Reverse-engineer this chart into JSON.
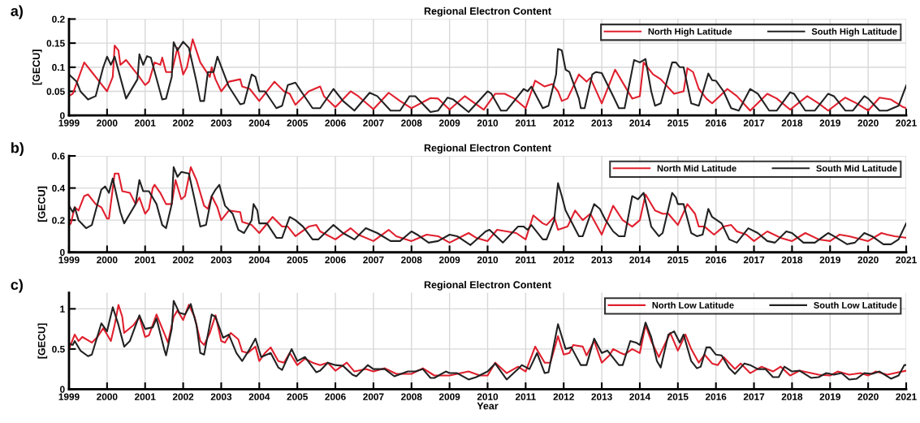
{
  "chart_data": [
    {
      "type": "line",
      "title": "Regional Electron Content",
      "ylabel": "[GECU]",
      "annotations": [
        "a)"
      ],
      "xlim": [
        1999,
        2021
      ],
      "xticks": [
        1999,
        2000,
        2001,
        2002,
        2003,
        2004,
        2005,
        2006,
        2007,
        2008,
        2009,
        2010,
        2011,
        2012,
        2013,
        2014,
        2015,
        2016,
        2017,
        2018,
        2019,
        2020,
        2021
      ],
      "ylim": [
        0,
        0.2
      ],
      "yticks": [
        0,
        0.05,
        0.1,
        0.15,
        0.2
      ],
      "grid": true,
      "legend": "top right",
      "series": [
        {
          "name": "North High Latitude",
          "color": "#e0202e",
          "x": [
            1999.0,
            1999.1,
            1999.4,
            1999.6,
            1999.8,
            2000.0,
            2000.15,
            2000.2,
            2000.3,
            2000.35,
            2000.5,
            2000.7,
            2000.8,
            2001.0,
            2001.1,
            2001.25,
            2001.4,
            2001.45,
            2001.55,
            2001.7,
            2001.85,
            2002.0,
            2002.1,
            2002.25,
            2002.45,
            2002.7,
            2002.75,
            2002.85,
            2003.0,
            2003.2,
            2003.5,
            2003.55,
            2003.75,
            2004.0,
            2004.15,
            2004.4,
            2004.65,
            2004.8,
            2004.95,
            2005.3,
            2005.6,
            2005.7,
            2006.0,
            2006.4,
            2006.6,
            2007.0,
            2007.4,
            2007.7,
            2008.0,
            2008.5,
            2008.7,
            2009.0,
            2009.4,
            2009.9,
            2010.2,
            2010.45,
            2010.7,
            2011.0,
            2011.25,
            2011.5,
            2011.7,
            2011.85,
            2011.95,
            2012.1,
            2012.4,
            2012.6,
            2012.7,
            2013.0,
            2013.35,
            2013.8,
            2014.0,
            2014.1,
            2014.35,
            2014.55,
            2014.9,
            2015.15,
            2015.25,
            2015.4,
            2015.55,
            2015.75,
            2015.9,
            2016.3,
            2016.55,
            2016.9,
            2017.35,
            2017.6,
            2017.95,
            2018.4,
            2018.7,
            2018.95,
            2019.4,
            2019.7,
            2020.0,
            2020.3,
            2020.6,
            2020.9,
            2021.0
          ],
          "values": [
            0.04,
            0.045,
            0.11,
            0.09,
            0.07,
            0.05,
            0.08,
            0.145,
            0.135,
            0.105,
            0.115,
            0.095,
            0.085,
            0.063,
            0.07,
            0.11,
            0.105,
            0.12,
            0.09,
            0.09,
            0.14,
            0.085,
            0.1,
            0.158,
            0.11,
            0.08,
            0.1,
            0.075,
            0.05,
            0.07,
            0.075,
            0.06,
            0.055,
            0.03,
            0.045,
            0.07,
            0.05,
            0.045,
            0.022,
            0.05,
            0.06,
            0.04,
            0.017,
            0.05,
            0.04,
            0.013,
            0.047,
            0.03,
            0.015,
            0.036,
            0.035,
            0.012,
            0.04,
            0.012,
            0.045,
            0.045,
            0.035,
            0.015,
            0.072,
            0.06,
            0.065,
            0.05,
            0.03,
            0.035,
            0.085,
            0.07,
            0.078,
            0.025,
            0.095,
            0.035,
            0.04,
            0.11,
            0.085,
            0.075,
            0.045,
            0.05,
            0.098,
            0.09,
            0.055,
            0.035,
            0.025,
            0.055,
            0.04,
            0.01,
            0.045,
            0.035,
            0.012,
            0.04,
            0.025,
            0.01,
            0.037,
            0.025,
            0.01,
            0.037,
            0.033,
            0.018,
            0.015
          ]
        },
        {
          "name": "South High Latitude",
          "color": "#222222",
          "x": [
            1999.0,
            1999.2,
            1999.3,
            1999.5,
            1999.7,
            1999.9,
            2000.0,
            2000.1,
            2000.2,
            2000.5,
            2000.8,
            2000.85,
            2000.95,
            2001.05,
            2001.15,
            2001.45,
            2001.55,
            2001.7,
            2001.75,
            2001.85,
            2002.0,
            2002.15,
            2002.35,
            2002.45,
            2002.55,
            2002.65,
            2002.8,
            2002.9,
            2003.2,
            2003.5,
            2003.6,
            2003.8,
            2003.9,
            2004.0,
            2004.15,
            2004.45,
            2004.6,
            2004.75,
            2004.95,
            2005.1,
            2005.4,
            2005.6,
            2005.95,
            2006.2,
            2006.5,
            2006.9,
            2007.1,
            2007.45,
            2007.7,
            2007.95,
            2008.1,
            2008.5,
            2008.7,
            2008.95,
            2009.1,
            2009.5,
            2010.0,
            2010.1,
            2010.35,
            2010.5,
            2010.8,
            2010.95,
            2011.05,
            2011.15,
            2011.45,
            2011.6,
            2011.8,
            2011.85,
            2011.95,
            2012.05,
            2012.15,
            2012.4,
            2012.45,
            2012.55,
            2012.75,
            2012.85,
            2013.0,
            2013.3,
            2013.45,
            2013.6,
            2013.85,
            2014.0,
            2014.15,
            2014.3,
            2014.4,
            2014.55,
            2014.85,
            2014.95,
            2015.05,
            2015.15,
            2015.35,
            2015.55,
            2015.8,
            2015.9,
            2016.0,
            2016.2,
            2016.4,
            2016.6,
            2016.9,
            2017.1,
            2017.4,
            2017.6,
            2017.95,
            2018.05,
            2018.35,
            2018.6,
            2018.95,
            2019.1,
            2019.4,
            2019.6,
            2019.9,
            2020.0,
            2020.3,
            2020.5,
            2020.8,
            2021.0
          ],
          "values": [
            0.085,
            0.07,
            0.05,
            0.033,
            0.04,
            0.1,
            0.122,
            0.105,
            0.122,
            0.035,
            0.075,
            0.127,
            0.105,
            0.123,
            0.12,
            0.033,
            0.035,
            0.08,
            0.152,
            0.135,
            0.153,
            0.14,
            0.07,
            0.03,
            0.03,
            0.09,
            0.09,
            0.122,
            0.06,
            0.023,
            0.025,
            0.085,
            0.08,
            0.05,
            0.05,
            0.015,
            0.02,
            0.063,
            0.068,
            0.05,
            0.015,
            0.015,
            0.055,
            0.03,
            0.01,
            0.047,
            0.04,
            0.01,
            0.01,
            0.04,
            0.04,
            0.007,
            0.01,
            0.037,
            0.033,
            0.007,
            0.05,
            0.045,
            0.01,
            0.01,
            0.04,
            0.055,
            0.05,
            0.06,
            0.015,
            0.02,
            0.085,
            0.138,
            0.135,
            0.095,
            0.09,
            0.035,
            0.015,
            0.015,
            0.085,
            0.09,
            0.088,
            0.04,
            0.015,
            0.015,
            0.115,
            0.11,
            0.117,
            0.05,
            0.02,
            0.025,
            0.11,
            0.11,
            0.1,
            0.1,
            0.025,
            0.02,
            0.087,
            0.073,
            0.072,
            0.05,
            0.015,
            0.01,
            0.055,
            0.045,
            0.01,
            0.01,
            0.048,
            0.045,
            0.01,
            0.01,
            0.045,
            0.04,
            0.01,
            0.01,
            0.04,
            0.035,
            0.01,
            0.01,
            0.02,
            0.062
          ]
        }
      ]
    },
    {
      "type": "line",
      "title": "Regional Electron Content",
      "ylabel": "[GECU]",
      "annotations": [
        "b)"
      ],
      "xlim": [
        1999,
        2021
      ],
      "xticks": [
        1999,
        2000,
        2001,
        2002,
        2003,
        2004,
        2005,
        2006,
        2007,
        2008,
        2009,
        2010,
        2011,
        2012,
        2013,
        2014,
        2015,
        2016,
        2017,
        2018,
        2019,
        2020,
        2021
      ],
      "ylim": [
        0,
        0.6
      ],
      "yticks": [
        0,
        0.2,
        0.4,
        0.6
      ],
      "grid": true,
      "legend": "top right",
      "series": [
        {
          "name": "North Mid Latitude",
          "color": "#e0202e",
          "x": [
            1999.0,
            1999.05,
            1999.15,
            1999.25,
            1999.4,
            1999.5,
            1999.7,
            1999.85,
            2000.0,
            2000.05,
            2000.2,
            2000.3,
            2000.4,
            2000.6,
            2000.75,
            2000.85,
            2001.0,
            2001.1,
            2001.2,
            2001.25,
            2001.4,
            2001.55,
            2001.7,
            2001.8,
            2001.95,
            2002.05,
            2002.2,
            2002.35,
            2002.55,
            2002.65,
            2002.75,
            2002.9,
            2003.0,
            2003.2,
            2003.5,
            2003.55,
            2003.8,
            2004.0,
            2004.35,
            2004.6,
            2004.75,
            2004.95,
            2005.3,
            2005.5,
            2005.6,
            2006.0,
            2006.4,
            2006.6,
            2007.0,
            2007.4,
            2007.6,
            2008.0,
            2008.4,
            2008.7,
            2009.0,
            2009.5,
            2009.7,
            2010.0,
            2010.25,
            2010.5,
            2010.75,
            2011.0,
            2011.2,
            2011.45,
            2011.55,
            2011.75,
            2011.85,
            2012.1,
            2012.3,
            2012.5,
            2012.7,
            2013.0,
            2013.3,
            2013.55,
            2013.8,
            2014.0,
            2014.15,
            2014.4,
            2014.6,
            2014.75,
            2015.0,
            2015.25,
            2015.45,
            2015.55,
            2015.7,
            2015.95,
            2016.2,
            2016.4,
            2016.55,
            2016.8,
            2017.0,
            2017.35,
            2017.7,
            2018.0,
            2018.35,
            2018.7,
            2019.0,
            2019.25,
            2019.5,
            2020.0,
            2020.35,
            2020.5,
            2020.7,
            2021.0
          ],
          "values": [
            0.17,
            0.18,
            0.28,
            0.26,
            0.35,
            0.36,
            0.3,
            0.28,
            0.21,
            0.21,
            0.49,
            0.49,
            0.38,
            0.37,
            0.3,
            0.34,
            0.24,
            0.27,
            0.4,
            0.42,
            0.37,
            0.3,
            0.3,
            0.45,
            0.33,
            0.35,
            0.53,
            0.45,
            0.29,
            0.27,
            0.35,
            0.28,
            0.2,
            0.26,
            0.25,
            0.19,
            0.17,
            0.12,
            0.22,
            0.16,
            0.16,
            0.1,
            0.16,
            0.17,
            0.13,
            0.08,
            0.15,
            0.11,
            0.07,
            0.14,
            0.1,
            0.07,
            0.11,
            0.1,
            0.06,
            0.12,
            0.09,
            0.07,
            0.14,
            0.13,
            0.12,
            0.08,
            0.23,
            0.18,
            0.17,
            0.22,
            0.14,
            0.16,
            0.26,
            0.2,
            0.24,
            0.11,
            0.29,
            0.2,
            0.16,
            0.2,
            0.36,
            0.26,
            0.24,
            0.24,
            0.17,
            0.3,
            0.24,
            0.16,
            0.16,
            0.11,
            0.16,
            0.17,
            0.13,
            0.11,
            0.07,
            0.13,
            0.09,
            0.07,
            0.12,
            0.08,
            0.07,
            0.11,
            0.1,
            0.07,
            0.12,
            0.11,
            0.1,
            0.09
          ]
        },
        {
          "name": "South Mid Latitude",
          "color": "#222222",
          "x": [
            1999.0,
            1999.1,
            1999.15,
            1999.25,
            1999.45,
            1999.6,
            1999.85,
            1999.95,
            2000.05,
            2000.15,
            2000.35,
            2000.45,
            2000.75,
            2000.85,
            2000.95,
            2001.1,
            2001.3,
            2001.45,
            2001.55,
            2001.7,
            2001.75,
            2001.85,
            2001.95,
            2002.15,
            2002.3,
            2002.45,
            2002.6,
            2002.75,
            2002.85,
            2002.95,
            2003.1,
            2003.3,
            2003.45,
            2003.6,
            2003.8,
            2003.85,
            2003.95,
            2004.0,
            2004.2,
            2004.45,
            2004.6,
            2004.8,
            2004.95,
            2005.15,
            2005.4,
            2005.55,
            2005.95,
            2006.2,
            2006.5,
            2006.8,
            2007.1,
            2007.45,
            2007.7,
            2008.0,
            2008.15,
            2008.45,
            2008.7,
            2009.0,
            2009.2,
            2009.55,
            2009.95,
            2010.05,
            2010.4,
            2010.8,
            2010.95,
            2011.05,
            2011.15,
            2011.45,
            2011.55,
            2011.75,
            2011.85,
            2011.95,
            2012.05,
            2012.4,
            2012.5,
            2012.8,
            2012.95,
            2013.1,
            2013.3,
            2013.45,
            2013.6,
            2013.8,
            2013.95,
            2014.1,
            2014.3,
            2014.5,
            2014.6,
            2014.85,
            2014.95,
            2015.0,
            2015.15,
            2015.35,
            2015.5,
            2015.65,
            2015.8,
            2015.9,
            2016.15,
            2016.35,
            2016.55,
            2016.85,
            2017.1,
            2017.35,
            2017.55,
            2017.85,
            2018.0,
            2018.3,
            2018.6,
            2018.95,
            2019.1,
            2019.45,
            2019.65,
            2019.9,
            2020.1,
            2020.4,
            2020.6,
            2020.8,
            2021.0
          ],
          "values": [
            0.29,
            0.25,
            0.28,
            0.2,
            0.15,
            0.17,
            0.39,
            0.41,
            0.37,
            0.46,
            0.25,
            0.18,
            0.3,
            0.45,
            0.38,
            0.38,
            0.3,
            0.17,
            0.15,
            0.3,
            0.53,
            0.47,
            0.5,
            0.49,
            0.33,
            0.16,
            0.17,
            0.35,
            0.39,
            0.42,
            0.29,
            0.24,
            0.14,
            0.12,
            0.2,
            0.3,
            0.26,
            0.18,
            0.18,
            0.09,
            0.09,
            0.22,
            0.2,
            0.16,
            0.08,
            0.08,
            0.17,
            0.12,
            0.08,
            0.15,
            0.12,
            0.07,
            0.07,
            0.13,
            0.11,
            0.06,
            0.07,
            0.11,
            0.1,
            0.045,
            0.13,
            0.14,
            0.06,
            0.16,
            0.16,
            0.14,
            0.17,
            0.08,
            0.08,
            0.2,
            0.43,
            0.35,
            0.26,
            0.1,
            0.1,
            0.3,
            0.27,
            0.2,
            0.13,
            0.1,
            0.1,
            0.35,
            0.33,
            0.37,
            0.16,
            0.1,
            0.12,
            0.37,
            0.34,
            0.3,
            0.3,
            0.12,
            0.1,
            0.11,
            0.27,
            0.22,
            0.18,
            0.08,
            0.06,
            0.15,
            0.12,
            0.07,
            0.06,
            0.13,
            0.12,
            0.06,
            0.06,
            0.12,
            0.1,
            0.05,
            0.06,
            0.12,
            0.1,
            0.05,
            0.05,
            0.08,
            0.18
          ]
        }
      ]
    },
    {
      "type": "line",
      "title": "Regional Electron Content",
      "xlabel": "Year",
      "ylabel": "[GECU]",
      "annotations": [
        "c)"
      ],
      "xlim": [
        1999,
        2021
      ],
      "xticks": [
        1999,
        2000,
        2001,
        2002,
        2003,
        2004,
        2005,
        2006,
        2007,
        2008,
        2009,
        2010,
        2011,
        2012,
        2013,
        2014,
        2015,
        2016,
        2017,
        2018,
        2019,
        2020,
        2021
      ],
      "ylim": [
        0,
        1.2
      ],
      "yticks": [
        0,
        0.5,
        1
      ],
      "grid": true,
      "legend": "top right",
      "series": [
        {
          "name": "North Low Latitude",
          "color": "#e0202e",
          "x": [
            1999.0,
            1999.15,
            1999.25,
            1999.35,
            1999.6,
            1999.75,
            1999.9,
            2000.0,
            2000.1,
            2000.2,
            2000.3,
            2000.4,
            2000.45,
            2000.7,
            2000.85,
            2001.0,
            2001.1,
            2001.3,
            2001.5,
            2001.6,
            2001.75,
            2001.85,
            2002.0,
            2002.15,
            2002.3,
            2002.45,
            2002.55,
            2002.7,
            2002.85,
            2003.0,
            2003.1,
            2003.25,
            2003.45,
            2003.55,
            2003.7,
            2003.9,
            2004.0,
            2004.15,
            2004.3,
            2004.5,
            2004.65,
            2004.8,
            2005.0,
            2005.2,
            2005.4,
            2005.6,
            2005.8,
            2006.0,
            2006.3,
            2006.5,
            2006.8,
            2007.0,
            2007.3,
            2007.6,
            2008.0,
            2008.3,
            2008.6,
            2009.0,
            2009.5,
            2009.8,
            2010.0,
            2010.2,
            2010.5,
            2010.8,
            2011.0,
            2011.25,
            2011.5,
            2011.65,
            2011.85,
            2012.0,
            2012.15,
            2012.25,
            2012.5,
            2012.6,
            2012.8,
            2013.0,
            2013.2,
            2013.3,
            2013.5,
            2013.6,
            2013.8,
            2014.0,
            2014.15,
            2014.3,
            2014.5,
            2014.8,
            2015.0,
            2015.2,
            2015.35,
            2015.55,
            2015.7,
            2015.9,
            2016.05,
            2016.2,
            2016.5,
            2016.65,
            2016.9,
            2017.2,
            2017.5,
            2017.7,
            2017.95,
            2018.2,
            2018.5,
            2018.7,
            2019.0,
            2019.2,
            2019.5,
            2019.8,
            2020.0,
            2020.2,
            2020.5,
            2020.7,
            2021.0
          ],
          "values": [
            0.5,
            0.68,
            0.6,
            0.65,
            0.58,
            0.65,
            0.76,
            0.68,
            0.6,
            0.8,
            1.05,
            0.9,
            0.7,
            0.8,
            0.9,
            0.65,
            0.67,
            0.93,
            0.7,
            0.58,
            0.9,
            0.98,
            0.86,
            1.05,
            0.9,
            0.6,
            0.55,
            0.7,
            0.92,
            0.6,
            0.58,
            0.7,
            0.62,
            0.47,
            0.45,
            0.53,
            0.35,
            0.45,
            0.52,
            0.35,
            0.33,
            0.45,
            0.3,
            0.38,
            0.33,
            0.3,
            0.33,
            0.23,
            0.33,
            0.22,
            0.25,
            0.22,
            0.26,
            0.19,
            0.19,
            0.26,
            0.17,
            0.17,
            0.22,
            0.17,
            0.17,
            0.33,
            0.2,
            0.28,
            0.22,
            0.53,
            0.33,
            0.33,
            0.66,
            0.43,
            0.45,
            0.55,
            0.53,
            0.42,
            0.6,
            0.33,
            0.42,
            0.5,
            0.45,
            0.43,
            0.5,
            0.45,
            0.8,
            0.6,
            0.4,
            0.7,
            0.48,
            0.68,
            0.5,
            0.33,
            0.43,
            0.32,
            0.3,
            0.4,
            0.25,
            0.32,
            0.2,
            0.28,
            0.22,
            0.28,
            0.17,
            0.23,
            0.2,
            0.18,
            0.17,
            0.22,
            0.18,
            0.2,
            0.17,
            0.22,
            0.18,
            0.2,
            0.23
          ]
        },
        {
          "name": "South Low Latitude",
          "color": "#222222",
          "x": [
            1999.0,
            1999.1,
            1999.15,
            1999.3,
            1999.5,
            1999.6,
            1999.85,
            2000.0,
            2000.15,
            2000.3,
            2000.45,
            2000.6,
            2000.85,
            2001.0,
            2001.2,
            2001.3,
            2001.5,
            2001.55,
            2001.7,
            2001.75,
            2001.9,
            2002.05,
            2002.2,
            2002.35,
            2002.45,
            2002.55,
            2002.75,
            2002.85,
            2003.05,
            2003.2,
            2003.4,
            2003.55,
            2003.75,
            2003.9,
            2004.05,
            2004.3,
            2004.5,
            2004.6,
            2004.85,
            2005.0,
            2005.2,
            2005.5,
            2005.6,
            2005.8,
            2006.0,
            2006.2,
            2006.45,
            2006.55,
            2006.85,
            2007.0,
            2007.3,
            2007.55,
            2007.9,
            2008.1,
            2008.3,
            2008.5,
            2008.6,
            2008.9,
            2009.0,
            2009.2,
            2009.5,
            2009.7,
            2010.0,
            2010.2,
            2010.5,
            2010.8,
            2010.9,
            2011.1,
            2011.3,
            2011.5,
            2011.6,
            2011.85,
            2012.05,
            2012.2,
            2012.45,
            2012.6,
            2012.8,
            2013.0,
            2013.15,
            2013.45,
            2013.55,
            2013.75,
            2013.9,
            2014.0,
            2014.15,
            2014.3,
            2014.45,
            2014.55,
            2014.75,
            2014.9,
            2015.05,
            2015.15,
            2015.35,
            2015.5,
            2015.6,
            2015.75,
            2015.85,
            2016.0,
            2016.15,
            2016.35,
            2016.5,
            2016.75,
            2016.9,
            2017.1,
            2017.3,
            2017.5,
            2017.65,
            2017.8,
            2018.0,
            2018.2,
            2018.5,
            2018.7,
            2018.9,
            2019.1,
            2019.3,
            2019.5,
            2019.7,
            2019.9,
            2020.1,
            2020.3,
            2020.6,
            2020.8,
            2020.95,
            2021.0
          ],
          "values": [
            0.57,
            0.55,
            0.6,
            0.48,
            0.41,
            0.43,
            0.82,
            0.72,
            1.02,
            0.8,
            0.53,
            0.6,
            0.92,
            0.75,
            0.77,
            0.88,
            0.5,
            0.42,
            0.75,
            1.1,
            0.95,
            0.93,
            1.06,
            0.8,
            0.45,
            0.43,
            0.93,
            0.9,
            0.64,
            0.68,
            0.45,
            0.35,
            0.5,
            0.63,
            0.4,
            0.45,
            0.27,
            0.24,
            0.5,
            0.35,
            0.4,
            0.21,
            0.23,
            0.33,
            0.3,
            0.29,
            0.18,
            0.16,
            0.3,
            0.25,
            0.25,
            0.16,
            0.22,
            0.22,
            0.25,
            0.14,
            0.14,
            0.22,
            0.2,
            0.2,
            0.12,
            0.15,
            0.22,
            0.32,
            0.12,
            0.25,
            0.3,
            0.25,
            0.45,
            0.2,
            0.21,
            0.81,
            0.5,
            0.52,
            0.3,
            0.3,
            0.63,
            0.45,
            0.48,
            0.3,
            0.3,
            0.6,
            0.58,
            0.55,
            0.83,
            0.65,
            0.35,
            0.27,
            0.68,
            0.72,
            0.58,
            0.68,
            0.35,
            0.26,
            0.28,
            0.52,
            0.52,
            0.43,
            0.42,
            0.26,
            0.19,
            0.32,
            0.3,
            0.25,
            0.25,
            0.15,
            0.15,
            0.28,
            0.22,
            0.23,
            0.14,
            0.15,
            0.2,
            0.18,
            0.2,
            0.12,
            0.13,
            0.2,
            0.19,
            0.22,
            0.13,
            0.17,
            0.3,
            0.3
          ]
        }
      ]
    }
  ]
}
